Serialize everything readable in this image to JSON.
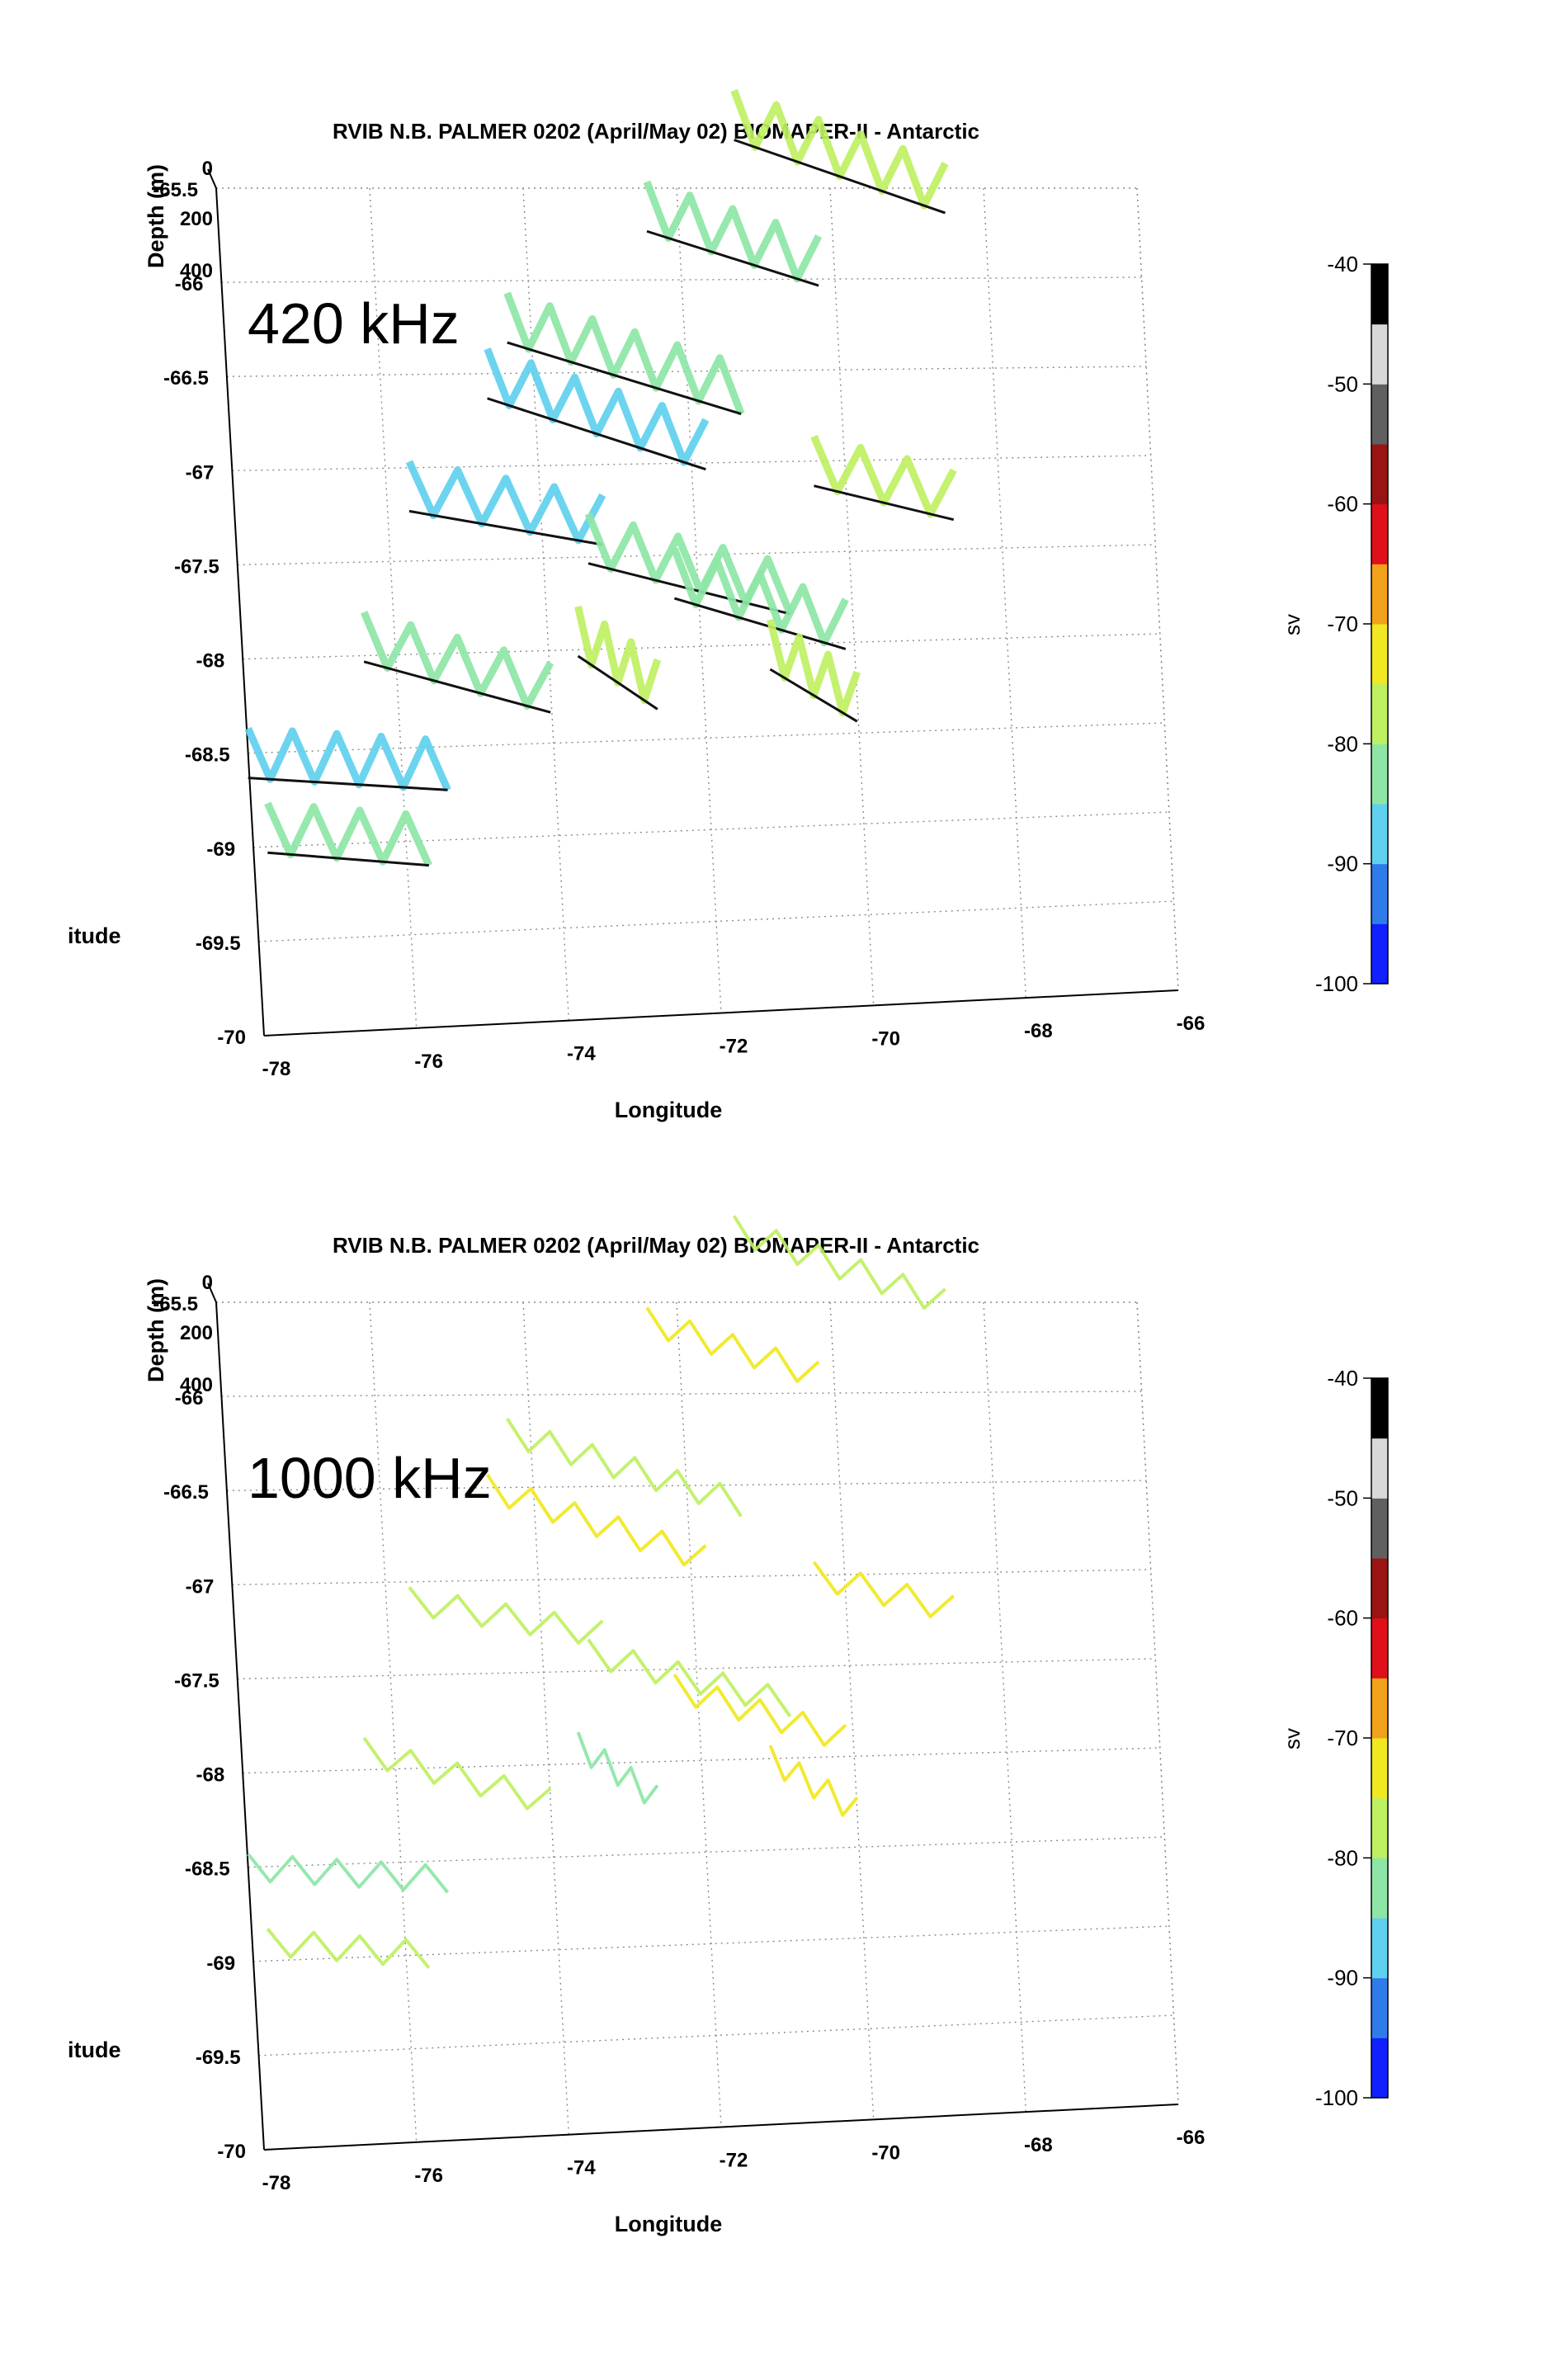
{
  "colors": {
    "colormap": [
      "#1020ff",
      "#2f7bea",
      "#5fd0ee",
      "#8de6a6",
      "#bff062",
      "#f0e820",
      "#f2a21a",
      "#e0101a",
      "#9a1414",
      "#606060",
      "#d8d8d8",
      "#000000"
    ],
    "grid": "#8a8a8a",
    "axis": "#000000"
  },
  "chart_data": [
    {
      "type": "scatter",
      "title": "RVIB N.B. PALMER 0202 (April/May 02) BIOMAPER-II - Antarctic",
      "annotation": "420 kHz",
      "xlabel": "Longitude",
      "ylabel_partial": "itude",
      "zlabel": "Depth (m)",
      "xticks": [
        "-78",
        "-76",
        "-74",
        "-72",
        "-70",
        "-68",
        "-66"
      ],
      "yticks": [
        "-65.5",
        "-66",
        "-66.5",
        "-67",
        "-67.5",
        "-68",
        "-68.5",
        "-69",
        "-69.5",
        "-70"
      ],
      "zticks": [
        "0",
        "200",
        "400"
      ],
      "xlim": [
        -78,
        -66
      ],
      "ylim": [
        -70,
        -65.5
      ],
      "colorbar": {
        "label": "sv",
        "ticks": [
          "-40",
          "-50",
          "-60",
          "-70",
          "-80",
          "-90",
          "-100"
        ],
        "range": [
          -100,
          -40
        ]
      },
      "tracks": [
        {
          "lon": [
            -78.0,
            -75.4
          ],
          "lat": [
            -68.5,
            -68.6
          ],
          "sv": -88
        },
        {
          "lon": [
            -77.8,
            -75.7
          ],
          "lat": [
            -68.9,
            -69.0
          ],
          "sv": -86
        },
        {
          "lon": [
            -76.4,
            -74.0
          ],
          "lat": [
            -67.9,
            -68.2
          ],
          "sv": -84
        },
        {
          "lon": [
            -75.7,
            -73.2
          ],
          "lat": [
            -67.1,
            -67.3
          ],
          "sv": -88
        },
        {
          "lon": [
            -74.3,
            -71.3
          ],
          "lat": [
            -66.2,
            -66.6
          ],
          "sv": -86
        },
        {
          "lon": [
            -72.4,
            -70.2
          ],
          "lat": [
            -65.6,
            -65.9
          ],
          "sv": -82
        },
        {
          "lon": [
            -71.2,
            -68.5
          ],
          "lat": [
            -65.1,
            -65.5
          ],
          "sv": -80
        },
        {
          "lon": [
            -74.6,
            -71.8
          ],
          "lat": [
            -66.5,
            -66.9
          ],
          "sv": -90
        },
        {
          "lon": [
            -73.4,
            -70.8
          ],
          "lat": [
            -67.4,
            -67.7
          ],
          "sv": -84
        },
        {
          "lon": [
            -72.3,
            -70.1
          ],
          "lat": [
            -67.6,
            -67.9
          ],
          "sv": -82
        },
        {
          "lon": [
            -70.4,
            -68.6
          ],
          "lat": [
            -67.0,
            -67.2
          ],
          "sv": -78
        },
        {
          "lon": [
            -73.6,
            -72.6
          ],
          "lat": [
            -67.9,
            -68.2
          ],
          "sv": -76
        },
        {
          "lon": [
            -71.1,
            -70.0
          ],
          "lat": [
            -68.0,
            -68.3
          ],
          "sv": -80
        }
      ]
    },
    {
      "type": "scatter",
      "title": "RVIB N.B. PALMER 0202 (April/May 02) BIOMAPER-II - Antarctic",
      "annotation": "1000 kHz",
      "xlabel": "Longitude",
      "ylabel_partial": "itude",
      "zlabel": "Depth (m)",
      "xticks": [
        "-78",
        "-76",
        "-74",
        "-72",
        "-70",
        "-68",
        "-66"
      ],
      "yticks": [
        "-65.5",
        "-66",
        "-66.5",
        "-67",
        "-67.5",
        "-68",
        "-68.5",
        "-69",
        "-69.5",
        "-70"
      ],
      "zticks": [
        "0",
        "200",
        "400"
      ],
      "xlim": [
        -78,
        -66
      ],
      "ylim": [
        -70,
        -65.5
      ],
      "colorbar": {
        "label": "sv",
        "ticks": [
          "-40",
          "-50",
          "-60",
          "-70",
          "-80",
          "-90",
          "-100"
        ],
        "range": [
          -100,
          -40
        ]
      },
      "tracks": [
        {
          "lon": [
            -78.0,
            -75.4
          ],
          "lat": [
            -68.5,
            -68.6
          ],
          "sv": -82
        },
        {
          "lon": [
            -77.8,
            -75.7
          ],
          "lat": [
            -68.9,
            -69.0
          ],
          "sv": -80
        },
        {
          "lon": [
            -76.4,
            -74.0
          ],
          "lat": [
            -67.9,
            -68.2
          ],
          "sv": -78
        },
        {
          "lon": [
            -75.7,
            -73.2
          ],
          "lat": [
            -67.1,
            -67.3
          ],
          "sv": -78
        },
        {
          "lon": [
            -74.3,
            -71.3
          ],
          "lat": [
            -66.2,
            -66.6
          ],
          "sv": -76
        },
        {
          "lon": [
            -72.4,
            -70.2
          ],
          "lat": [
            -65.6,
            -65.9
          ],
          "sv": -75
        },
        {
          "lon": [
            -71.2,
            -68.5
          ],
          "lat": [
            -65.1,
            -65.5
          ],
          "sv": -77
        },
        {
          "lon": [
            -74.6,
            -71.8
          ],
          "lat": [
            -66.5,
            -66.9
          ],
          "sv": -74
        },
        {
          "lon": [
            -73.4,
            -70.8
          ],
          "lat": [
            -67.4,
            -67.7
          ],
          "sv": -79
        },
        {
          "lon": [
            -72.3,
            -70.1
          ],
          "lat": [
            -67.6,
            -67.9
          ],
          "sv": -75
        },
        {
          "lon": [
            -70.4,
            -68.6
          ],
          "lat": [
            -67.0,
            -67.2
          ],
          "sv": -74
        },
        {
          "lon": [
            -73.6,
            -72.6
          ],
          "lat": [
            -67.9,
            -68.2
          ],
          "sv": -82
        },
        {
          "lon": [
            -71.1,
            -70.0
          ],
          "lat": [
            -68.0,
            -68.3
          ],
          "sv": -72
        }
      ]
    }
  ]
}
